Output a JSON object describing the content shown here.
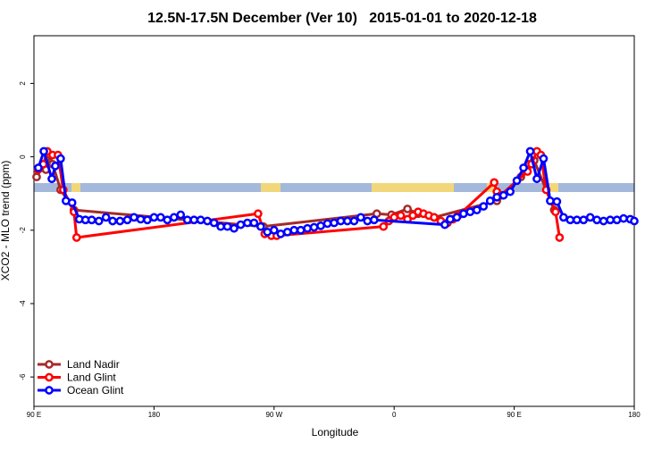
{
  "chart_data": {
    "type": "line",
    "title": "12.5N-17.5N December (Ver 10)   2015-01-01 to 2020-12-18",
    "x_label": "Longitude",
    "y_label": "XCO2 - MLO trend (ppm)",
    "xlim": [
      90,
      540
    ],
    "ylim": [
      -6.8,
      3.3
    ],
    "xticks": [
      {
        "value": 90,
        "label": "90 E"
      },
      180,
      {
        "value": 270,
        "label": "90 W"
      },
      {
        "value": 360,
        "label": "0"
      },
      {
        "value": 450,
        "label": "90 E"
      },
      {
        "value": 540,
        "label": "180"
      }
    ],
    "yticks": [
      2,
      0,
      -2,
      -4,
      -6
    ],
    "legend": "bottom-left",
    "series": [
      {
        "name": "Land Nadir",
        "color": "#a52a2a",
        "x": [
          92,
          96,
          99,
          102,
          104,
          110,
          120,
          262,
          347,
          358,
          370,
          378,
          390,
          437,
          440,
          455,
          461,
          465,
          480
        ],
        "values": [
          -0.55,
          -0.3,
          -0.35,
          0.05,
          -0.2,
          -0.9,
          -1.45,
          -1.9,
          -1.55,
          -1.58,
          -1.42,
          -1.55,
          -1.65,
          -1.2,
          -1.05,
          -0.55,
          -0.2,
          -0.1,
          -1.45
        ]
      },
      {
        "name": "Land Glint",
        "color": "#ff0000",
        "x": [
          93,
          97,
          100,
          104,
          108,
          112,
          120,
          122,
          258,
          263,
          268,
          272,
          352,
          356,
          360,
          365,
          370,
          374,
          378,
          382,
          386,
          390,
          395,
          400,
          404,
          408,
          435,
          437,
          440,
          460,
          463,
          467,
          470,
          474,
          481,
          484
        ],
        "values": [
          -0.35,
          -0.2,
          0.15,
          0.05,
          0.05,
          -0.9,
          -1.5,
          -2.2,
          -1.55,
          -2.1,
          -2.15,
          -2.15,
          -1.9,
          -1.75,
          -1.65,
          -1.6,
          -1.7,
          -1.6,
          -1.5,
          -1.55,
          -1.6,
          -1.65,
          -1.75,
          -1.8,
          -1.7,
          -1.6,
          -0.7,
          -0.95,
          -1.05,
          -0.4,
          -0.2,
          0.15,
          0.05,
          -0.9,
          -1.5,
          -2.2
        ]
      },
      {
        "name": "Ocean Glint",
        "color": "#0000ff",
        "x": [
          93.3,
          97.4,
          103.4,
          106,
          110,
          114,
          118.6,
          124,
          128.6,
          133.3,
          138.7,
          144,
          149,
          154.5,
          160,
          165,
          170,
          175,
          180,
          185,
          190,
          195,
          200,
          205,
          210,
          215,
          220,
          225,
          230,
          235,
          240,
          245,
          250,
          255,
          260,
          265,
          270,
          275,
          280,
          285,
          290,
          295,
          300,
          305,
          310,
          315,
          320,
          325,
          330,
          335,
          340,
          345,
          398,
          402,
          407,
          412,
          417,
          422,
          427,
          432,
          437,
          442,
          447,
          452,
          457,
          462,
          467,
          472,
          477,
          482,
          487,
          492,
          497,
          502,
          507,
          512,
          517,
          522,
          527,
          532,
          537,
          540
        ],
        "values": [
          -0.3,
          0.15,
          -0.6,
          -0.25,
          -0.05,
          -1.2,
          -1.25,
          -1.7,
          -1.72,
          -1.72,
          -1.75,
          -1.65,
          -1.75,
          -1.75,
          -1.72,
          -1.65,
          -1.7,
          -1.72,
          -1.65,
          -1.65,
          -1.72,
          -1.65,
          -1.58,
          -1.72,
          -1.72,
          -1.72,
          -1.75,
          -1.8,
          -1.9,
          -1.9,
          -1.95,
          -1.85,
          -1.8,
          -1.8,
          -1.9,
          -2.05,
          -2.0,
          -2.1,
          -2.05,
          -2.0,
          -2.0,
          -1.95,
          -1.92,
          -1.88,
          -1.82,
          -1.8,
          -1.75,
          -1.75,
          -1.75,
          -1.65,
          -1.75,
          -1.72,
          -1.85,
          -1.7,
          -1.65,
          -1.55,
          -1.5,
          -1.45,
          -1.35,
          -1.2,
          -1.1,
          -1.05,
          -0.95,
          -0.65,
          -0.3,
          0.15,
          -0.6,
          -0.05,
          -1.2,
          -1.22,
          -1.65,
          -1.72,
          -1.72,
          -1.72,
          -1.65,
          -1.72,
          -1.75,
          -1.72,
          -1.72,
          -1.68,
          -1.7,
          -1.75
        ]
      }
    ]
  }
}
